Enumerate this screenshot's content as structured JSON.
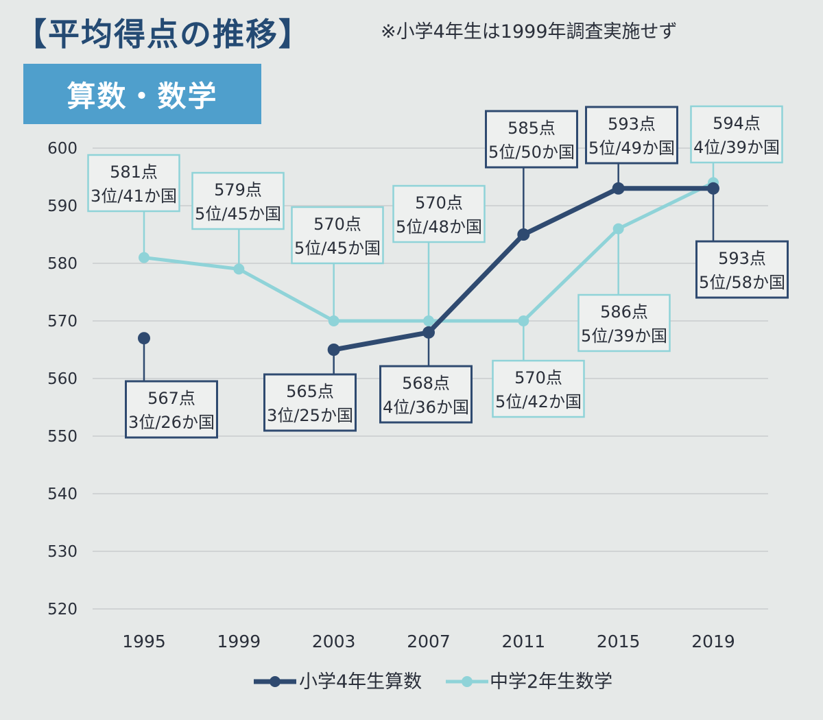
{
  "heading": "【平均得点の推移】",
  "note": "※小学4年生は1999年調査実施せず",
  "subject_label": "算数・数学",
  "colors": {
    "elementary": "#2f4a70",
    "junior": "#8fd3d8",
    "grid": "#c9cccd",
    "subject_bg": "#4f9fcc"
  },
  "chart_data": {
    "type": "line",
    "x": [
      "1995",
      "1999",
      "2003",
      "2007",
      "2011",
      "2015",
      "2019"
    ],
    "ylim": [
      520,
      600
    ],
    "yticks": [
      "520",
      "530",
      "540",
      "550",
      "560",
      "570",
      "580",
      "590",
      "600"
    ],
    "grid": true,
    "legend_position": "bottom",
    "series": [
      {
        "name": "小学4年生算数",
        "values": [
          567,
          null,
          565,
          568,
          585,
          593,
          593
        ],
        "labels": [
          [
            "567点",
            "3位/26か国"
          ],
          null,
          [
            "565点",
            "3位/25か国"
          ],
          [
            "568点",
            "4位/36か国"
          ],
          [
            "585点",
            "5位/50か国"
          ],
          [
            "593点",
            "5位/49か国"
          ],
          [
            "593点",
            "5位/58か国"
          ]
        ]
      },
      {
        "name": "中学2年生数学",
        "values": [
          581,
          579,
          570,
          570,
          570,
          586,
          594
        ],
        "labels": [
          [
            "581点",
            "3位/41か国"
          ],
          [
            "579点",
            "5位/45か国"
          ],
          [
            "570点",
            "5位/45か国"
          ],
          [
            "570点",
            "5位/48か国"
          ],
          [
            "570点",
            "5位/42か国"
          ],
          [
            "586点",
            "5位/39か国"
          ],
          [
            "594点",
            "4位/39か国"
          ]
        ]
      }
    ]
  }
}
